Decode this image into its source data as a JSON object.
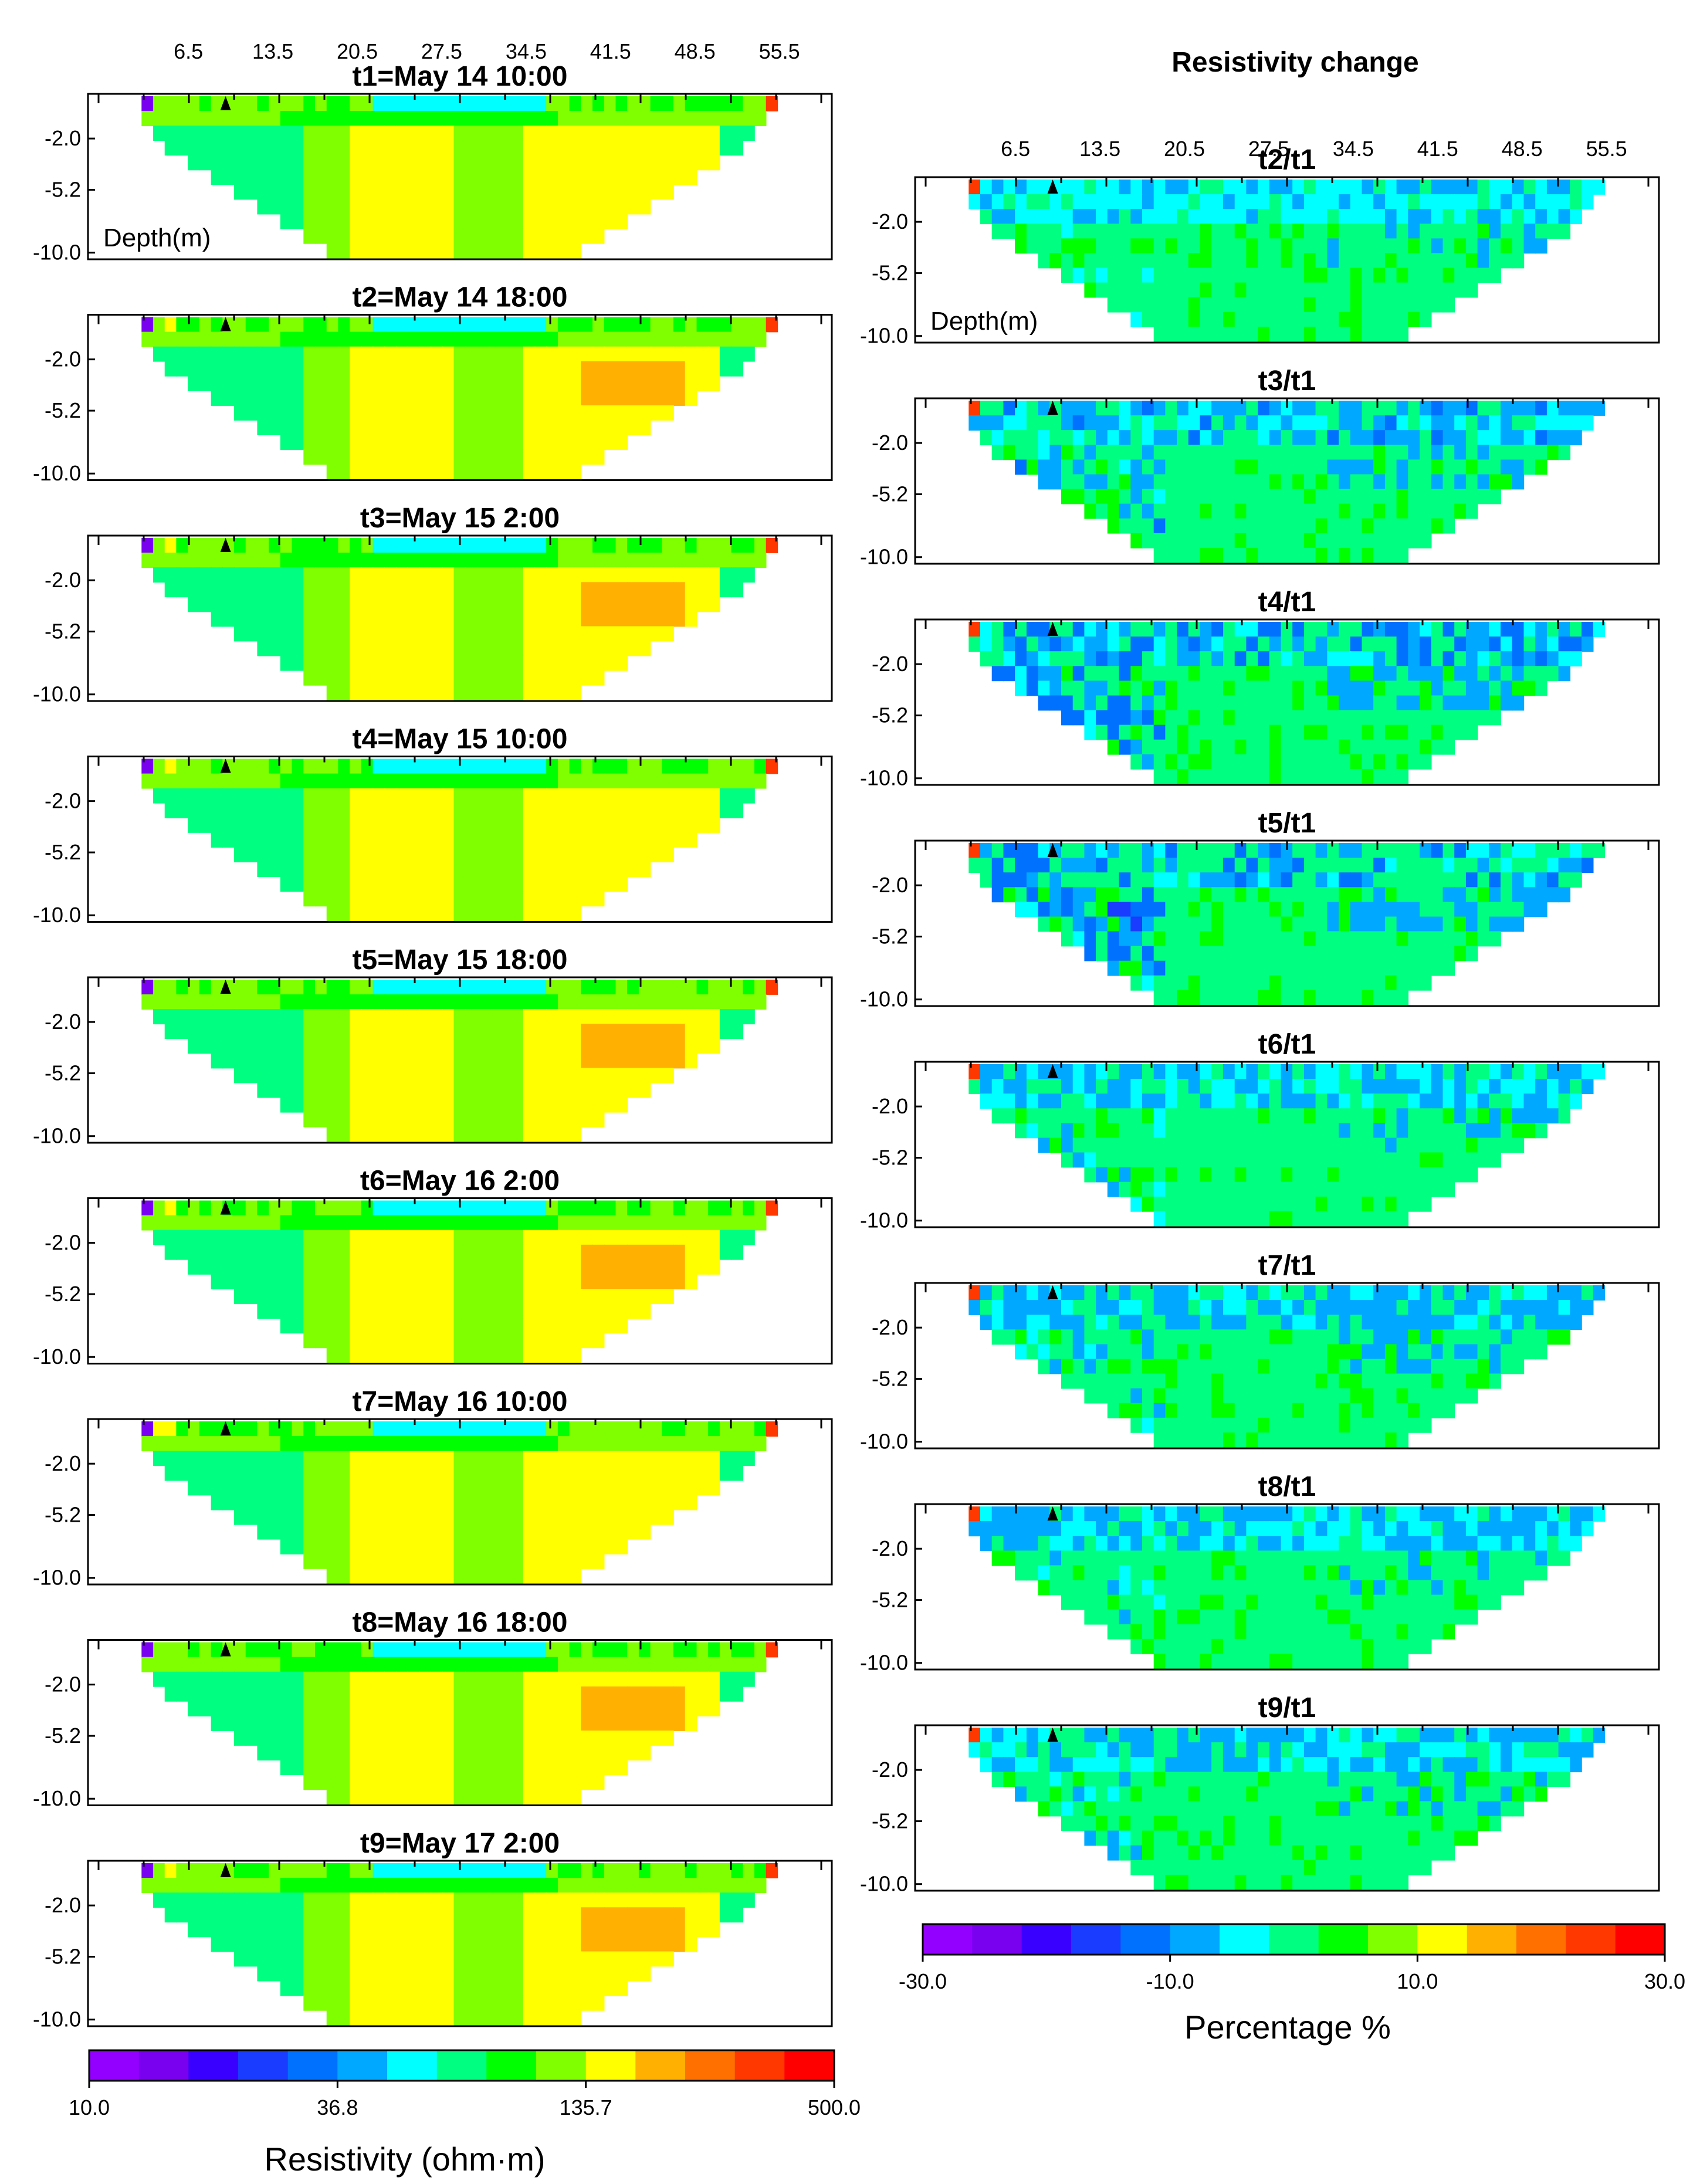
{
  "figure_title_right": "Resistivity change",
  "depth_axis_label": "Depth(m)",
  "x_ticks": [
    "6.5",
    "13.5",
    "20.5",
    "27.5",
    "34.5",
    "41.5",
    "48.5",
    "55.5"
  ],
  "depth_ticks": [
    "-2.0",
    "-5.2",
    "-10.0"
  ],
  "resistivity_panels": [
    {
      "title": "t1=May 14 10:00",
      "variant": 1
    },
    {
      "title": "t2=May 14 18:00",
      "variant": 2
    },
    {
      "title": "t3=May 15 2:00",
      "variant": 3
    },
    {
      "title": "t4=May 15 10:00",
      "variant": 4
    },
    {
      "title": "t5=May 15 18:00",
      "variant": 5
    },
    {
      "title": "t6=May 16 2:00",
      "variant": 6
    },
    {
      "title": "t7=May 16 10:00",
      "variant": 7
    },
    {
      "title": "t8=May 16 18:00",
      "variant": 8
    },
    {
      "title": "t9=May 17 2:00",
      "variant": 9
    }
  ],
  "change_panels": [
    {
      "title": "t2/t1",
      "intensity": 0.2
    },
    {
      "title": "t3/t1",
      "intensity": 0.6
    },
    {
      "title": "t4/t1",
      "intensity": 0.9
    },
    {
      "title": "t5/t1",
      "intensity": 1.0
    },
    {
      "title": "t6/t1",
      "intensity": 0.45
    },
    {
      "title": "t7/t1",
      "intensity": 0.5
    },
    {
      "title": "t8/t1",
      "intensity": 0.35
    },
    {
      "title": "t9/t1",
      "intensity": 0.4
    }
  ],
  "resistivity_colorbar": {
    "colors": [
      "#9400ff",
      "#7a00f0",
      "#3a00ff",
      "#1a3cff",
      "#0070ff",
      "#00a8ff",
      "#00ffff",
      "#00ff80",
      "#00ff00",
      "#80ff00",
      "#ffff00",
      "#ffb000",
      "#ff7000",
      "#ff3800",
      "#ff0000"
    ],
    "tick_labels": [
      "10.0",
      "36.8",
      "135.7",
      "500.0"
    ],
    "label": "Resistivity  (ohm·m)"
  },
  "change_colorbar": {
    "colors": [
      "#9400ff",
      "#7a00f0",
      "#3a00ff",
      "#1a3cff",
      "#0070ff",
      "#00a8ff",
      "#00ffff",
      "#00ff80",
      "#00ff00",
      "#80ff00",
      "#ffff00",
      "#ffb000",
      "#ff7000",
      "#ff3800",
      "#ff0000"
    ],
    "tick_labels": [
      "-30.0",
      "-10.0",
      "10.0",
      "30.0"
    ],
    "label": "Percentage %"
  },
  "chart_data": {
    "type": "heatmap",
    "title": "Resistivity change",
    "x": [
      6.5,
      13.5,
      20.5,
      27.5,
      34.5,
      41.5,
      48.5,
      55.5
    ],
    "y": [
      -2.0,
      -5.2,
      -10.0
    ],
    "ylabel": "Depth(m)",
    "resistivity_range": [
      10.0,
      500.0
    ],
    "change_range": [
      -30.0,
      30.0
    ],
    "series": [
      {
        "name": "t1=May 14 10:00"
      },
      {
        "name": "t2=May 14 18:00"
      },
      {
        "name": "t3=May 15 2:00"
      },
      {
        "name": "t4=May 15 10:00"
      },
      {
        "name": "t5=May 15 18:00"
      },
      {
        "name": "t6=May 16 2:00"
      },
      {
        "name": "t7=May 16 10:00"
      },
      {
        "name": "t8=May 16 18:00"
      },
      {
        "name": "t9=May 17 2:00"
      },
      {
        "name": "t2/t1"
      },
      {
        "name": "t3/t1"
      },
      {
        "name": "t4/t1"
      },
      {
        "name": "t5/t1"
      },
      {
        "name": "t6/t1"
      },
      {
        "name": "t7/t1"
      },
      {
        "name": "t8/t1"
      },
      {
        "name": "t9/t1"
      }
    ]
  }
}
